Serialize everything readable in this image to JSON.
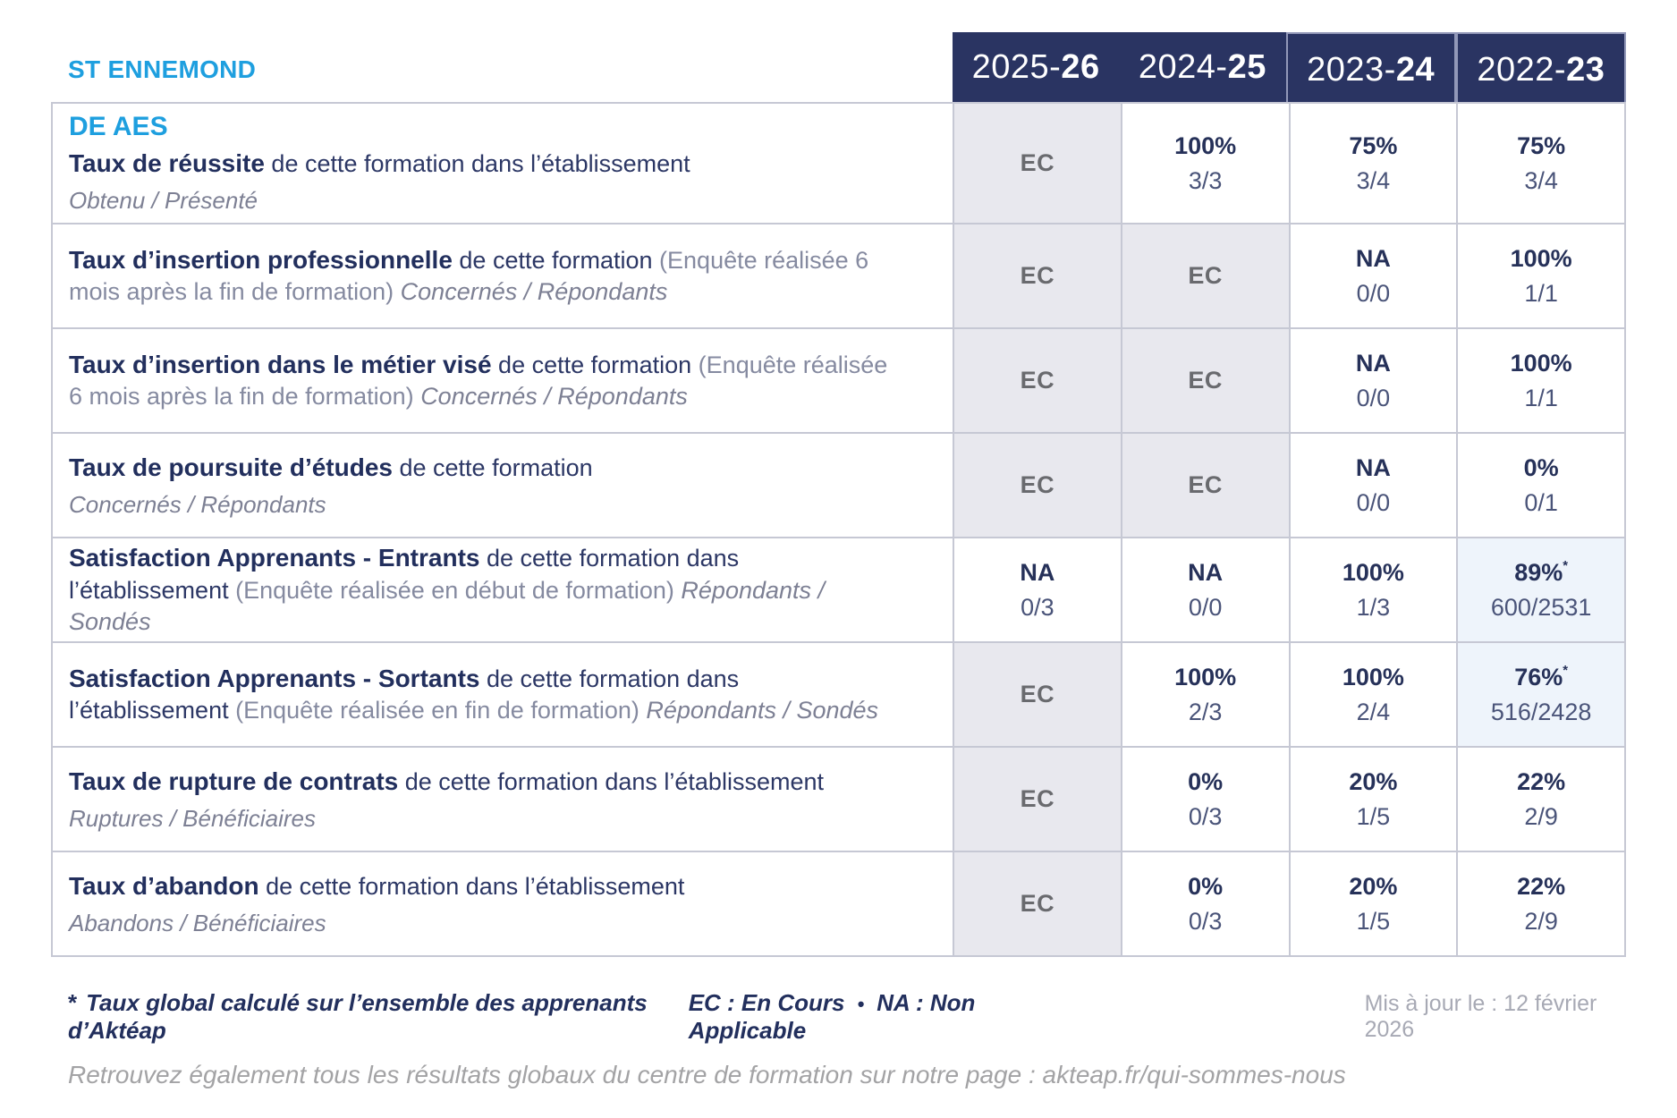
{
  "school": "ST ENNEMOND",
  "colors": {
    "accent_blue": "#1e9fdf",
    "header_navy": "#2a3462",
    "text_navy": "#222f5d",
    "ratio_slate": "#4a5479",
    "ec_cell_bg": "#e8e8ee",
    "highlight_cell_bg": "#eef4fb",
    "border": "#c6c8d4",
    "muted_grey": "#a3a3a5"
  },
  "columns": [
    {
      "prefix": "2025-",
      "suffix": "26"
    },
    {
      "prefix": "2024-",
      "suffix": "25"
    },
    {
      "prefix": "2023-",
      "suffix": "24"
    },
    {
      "prefix": "2022-",
      "suffix": "23"
    }
  ],
  "rows": [
    {
      "heading": "DE AES",
      "title": "Taux de réussite",
      "desc": "de cette formation dans l’établissement",
      "paren": "",
      "tail": "",
      "subline": "Obtenu / Présenté",
      "cells": [
        {
          "main": "EC",
          "ratio": "",
          "variant": "ec"
        },
        {
          "main": "100%",
          "ratio": "3/3",
          "variant": "plain"
        },
        {
          "main": "75%",
          "ratio": "3/4",
          "variant": "plain"
        },
        {
          "main": "75%",
          "ratio": "3/4",
          "variant": "plain"
        }
      ]
    },
    {
      "heading": "",
      "title": "Taux d’insertion professionnelle",
      "desc": "de cette formation",
      "paren": "(Enquête réalisée 6 mois après la fin de formation)",
      "tail": "Concernés / Répondants",
      "subline": "",
      "cells": [
        {
          "main": "EC",
          "ratio": "",
          "variant": "ec"
        },
        {
          "main": "EC",
          "ratio": "",
          "variant": "ec"
        },
        {
          "main": "NA",
          "ratio": "0/0",
          "variant": "plain"
        },
        {
          "main": "100%",
          "ratio": "1/1",
          "variant": "plain"
        }
      ]
    },
    {
      "heading": "",
      "title": "Taux d’insertion dans le métier visé",
      "desc": "de cette formation",
      "paren": "(Enquête réalisée 6 mois après la fin de formation)",
      "tail": "Concernés / Répondants",
      "subline": "",
      "cells": [
        {
          "main": "EC",
          "ratio": "",
          "variant": "ec"
        },
        {
          "main": "EC",
          "ratio": "",
          "variant": "ec"
        },
        {
          "main": "NA",
          "ratio": "0/0",
          "variant": "plain"
        },
        {
          "main": "100%",
          "ratio": "1/1",
          "variant": "plain"
        }
      ]
    },
    {
      "heading": "",
      "title": "Taux de poursuite d’études",
      "desc": "de cette formation",
      "paren": "",
      "tail": "",
      "subline": "Concernés / Répondants",
      "cells": [
        {
          "main": "EC",
          "ratio": "",
          "variant": "ec"
        },
        {
          "main": "EC",
          "ratio": "",
          "variant": "ec"
        },
        {
          "main": "NA",
          "ratio": "0/0",
          "variant": "plain"
        },
        {
          "main": "0%",
          "ratio": "0/1",
          "variant": "plain"
        }
      ]
    },
    {
      "heading": "",
      "title": "Satisfaction Apprenants - Entrants",
      "desc": "de cette formation dans l’établissement",
      "paren": "(Enquête réalisée en début de formation)",
      "tail": "Répondants / Sondés",
      "subline": "",
      "cells": [
        {
          "main": "NA",
          "ratio": "0/3",
          "variant": "plain"
        },
        {
          "main": "NA",
          "ratio": "0/0",
          "variant": "plain"
        },
        {
          "main": "100%",
          "ratio": "1/3",
          "variant": "plain"
        },
        {
          "main": "89%",
          "star": true,
          "ratio": "600/2531",
          "variant": "highlight"
        }
      ]
    },
    {
      "heading": "",
      "title": "Satisfaction Apprenants - Sortants",
      "desc": "de cette formation dans l’établissement",
      "paren": "(Enquête réalisée en fin de formation)",
      "tail": "Répondants / Sondés",
      "subline": "",
      "cells": [
        {
          "main": "EC",
          "ratio": "",
          "variant": "ec"
        },
        {
          "main": "100%",
          "ratio": "2/3",
          "variant": "plain"
        },
        {
          "main": "100%",
          "ratio": "2/4",
          "variant": "plain"
        },
        {
          "main": "76%",
          "star": true,
          "ratio": "516/2428",
          "variant": "highlight"
        }
      ]
    },
    {
      "heading": "",
      "title": "Taux de rupture de contrats",
      "desc": "de cette formation dans l’établissement",
      "paren": "",
      "tail": "",
      "subline": "Ruptures / Bénéficiaires",
      "cells": [
        {
          "main": "EC",
          "ratio": "",
          "variant": "ec"
        },
        {
          "main": "0%",
          "ratio": "0/3",
          "variant": "plain"
        },
        {
          "main": "20%",
          "ratio": "1/5",
          "variant": "plain"
        },
        {
          "main": "22%",
          "ratio": "2/9",
          "variant": "plain"
        }
      ]
    },
    {
      "heading": "",
      "title": "Taux d’abandon",
      "desc": "de cette formation dans l’établissement",
      "paren": "",
      "tail": "",
      "subline": "Abandons / Bénéficiaires",
      "cells": [
        {
          "main": "EC",
          "ratio": "",
          "variant": "ec"
        },
        {
          "main": "0%",
          "ratio": "0/3",
          "variant": "plain"
        },
        {
          "main": "20%",
          "ratio": "1/5",
          "variant": "plain"
        },
        {
          "main": "22%",
          "ratio": "2/9",
          "variant": "plain"
        }
      ]
    }
  ],
  "footnote": {
    "star": "*",
    "global_note": "Taux global calculé sur l’ensemble des apprenants d’Aktéap",
    "legend_ec": "EC : En Cours",
    "legend_sep": "•",
    "legend_na": "NA : Non Applicable",
    "updated": "Mis à jour le : 12 février 2026"
  },
  "bottom_note": "Retrouvez également tous les résultats globaux du centre de formation sur notre page : akteap.fr/qui-sommes-nous"
}
